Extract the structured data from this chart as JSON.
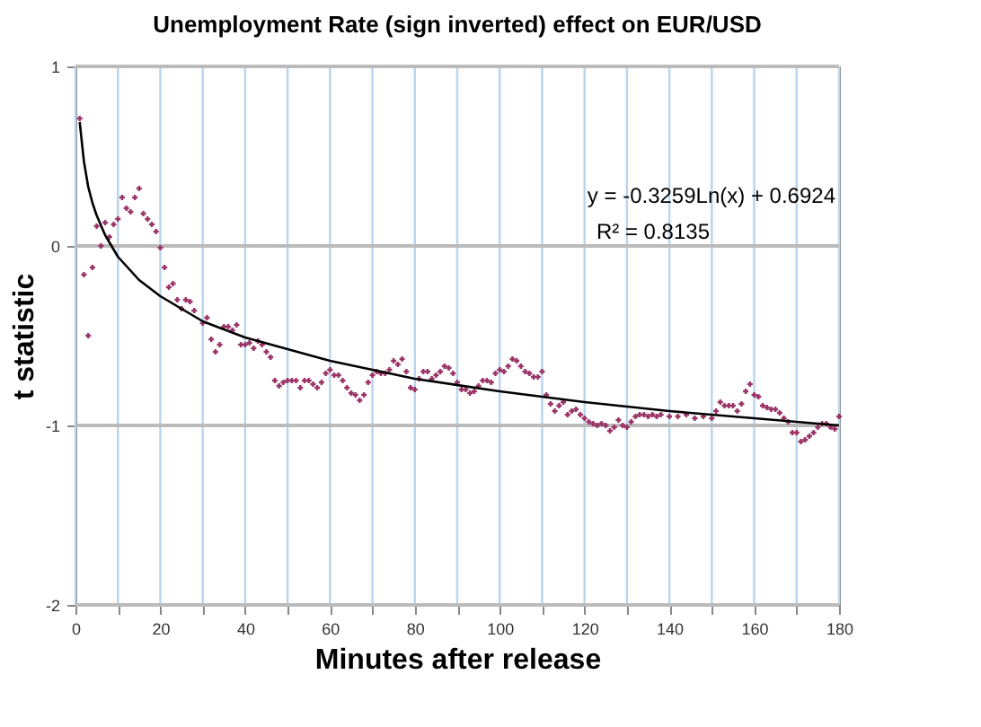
{
  "chart_data": {
    "type": "scatter",
    "title": "Unemployment Rate (sign inverted) effect on EUR/USD",
    "xlabel": "Minutes after release",
    "ylabel": "t statistic",
    "xlim": [
      0,
      180
    ],
    "ylim": [
      -2,
      1
    ],
    "xticks": [
      0,
      {
        "value": 10,
        "label": null
      },
      20,
      {
        "value": 30,
        "label": null
      },
      40,
      {
        "value": 50,
        "label": null
      },
      60,
      {
        "value": 70,
        "label": null
      },
      80,
      {
        "value": 90,
        "label": null
      },
      100,
      {
        "value": 110,
        "label": null
      },
      120,
      {
        "value": 130,
        "label": null
      },
      140,
      {
        "value": 150,
        "label": null
      },
      160,
      {
        "value": 170,
        "label": null
      },
      180
    ],
    "yticks": [
      -2,
      -1,
      0,
      1
    ],
    "grid": true,
    "legend": false,
    "annotations": [
      {
        "text": "y = -0.3259Ln(x) + 0.6924"
      },
      {
        "text": "R² = 0.8135"
      }
    ],
    "series": [
      {
        "type": "scatter",
        "marker": "cross",
        "color": "#993366",
        "x": [
          1,
          2,
          3,
          4,
          5,
          6,
          7,
          8,
          9,
          10,
          11,
          12,
          13,
          14,
          15,
          16,
          17,
          18,
          19,
          20,
          21,
          22,
          23,
          24,
          25,
          26,
          27,
          28,
          30,
          31,
          32,
          33,
          34,
          35,
          36,
          37,
          38,
          39,
          40,
          41,
          42,
          43,
          44,
          45,
          46,
          47,
          48,
          49,
          50,
          51,
          52,
          53,
          54,
          55,
          56,
          57,
          58,
          59,
          60,
          61,
          62,
          63,
          64,
          65,
          66,
          67,
          68,
          69,
          70,
          71,
          72,
          73,
          74,
          75,
          76,
          77,
          78,
          79,
          80,
          81,
          82,
          83,
          84,
          85,
          86,
          87,
          88,
          89,
          90,
          91,
          92,
          93,
          94,
          95,
          96,
          97,
          98,
          99,
          100,
          101,
          102,
          103,
          104,
          105,
          106,
          107,
          108,
          109,
          110,
          111,
          112,
          113,
          114,
          115,
          116,
          117,
          118,
          119,
          120,
          121,
          122,
          123,
          124,
          125,
          126,
          127,
          128,
          129,
          130,
          131,
          132,
          133,
          134,
          135,
          136,
          137,
          138,
          140,
          142,
          144,
          146,
          148,
          150,
          151,
          152,
          153,
          154,
          155,
          156,
          157,
          158,
          159,
          160,
          161,
          162,
          163,
          164,
          165,
          166,
          167,
          168,
          169,
          170,
          171,
          172,
          173,
          174,
          175,
          176,
          177,
          178,
          179,
          180
        ],
        "values": [
          0.71,
          -0.16,
          -0.5,
          -0.12,
          0.11,
          0.0,
          0.13,
          0.05,
          0.12,
          0.15,
          0.27,
          0.21,
          0.19,
          0.27,
          0.32,
          0.18,
          0.15,
          0.12,
          0.08,
          -0.01,
          -0.12,
          -0.23,
          -0.21,
          -0.3,
          -0.35,
          -0.3,
          -0.31,
          -0.36,
          -0.43,
          -0.4,
          -0.52,
          -0.59,
          -0.55,
          -0.45,
          -0.45,
          -0.47,
          -0.44,
          -0.55,
          -0.55,
          -0.54,
          -0.57,
          -0.53,
          -0.55,
          -0.59,
          -0.62,
          -0.75,
          -0.78,
          -0.76,
          -0.75,
          -0.75,
          -0.75,
          -0.79,
          -0.75,
          -0.75,
          -0.77,
          -0.79,
          -0.76,
          -0.71,
          -0.69,
          -0.72,
          -0.72,
          -0.75,
          -0.79,
          -0.82,
          -0.83,
          -0.86,
          -0.83,
          -0.76,
          -0.72,
          -0.7,
          -0.71,
          -0.71,
          -0.69,
          -0.64,
          -0.66,
          -0.63,
          -0.7,
          -0.79,
          -0.8,
          -0.74,
          -0.7,
          -0.7,
          -0.74,
          -0.72,
          -0.7,
          -0.67,
          -0.68,
          -0.71,
          -0.76,
          -0.8,
          -0.8,
          -0.82,
          -0.81,
          -0.78,
          -0.75,
          -0.75,
          -0.76,
          -0.71,
          -0.69,
          -0.7,
          -0.67,
          -0.63,
          -0.64,
          -0.67,
          -0.7,
          -0.71,
          -0.73,
          -0.73,
          -0.7,
          -0.83,
          -0.88,
          -0.92,
          -0.89,
          -0.87,
          -0.94,
          -0.92,
          -0.91,
          -0.94,
          -0.96,
          -0.98,
          -0.99,
          -1.0,
          -0.99,
          -1.0,
          -1.03,
          -1.01,
          -0.97,
          -1.0,
          -1.01,
          -0.98,
          -0.95,
          -0.94,
          -0.94,
          -0.95,
          -0.94,
          -0.95,
          -0.94,
          -0.95,
          -0.95,
          -0.94,
          -0.96,
          -0.95,
          -0.96,
          -0.92,
          -0.87,
          -0.89,
          -0.89,
          -0.89,
          -0.92,
          -0.88,
          -0.81,
          -0.77,
          -0.83,
          -0.84,
          -0.89,
          -0.9,
          -0.91,
          -0.91,
          -0.93,
          -0.96,
          -0.98,
          -1.04,
          -1.04,
          -1.09,
          -1.08,
          -1.06,
          -1.04,
          -1.01,
          -0.99,
          -0.99,
          -1.01,
          -1.02,
          -0.95
        ]
      },
      {
        "type": "line",
        "marker": "none",
        "line_style": "solid",
        "color": "#000000",
        "x": [
          1,
          2,
          3,
          4,
          5,
          7,
          10,
          15,
          20,
          30,
          40,
          60,
          80,
          100,
          120,
          140,
          160,
          180
        ],
        "values": [
          0.69,
          0.47,
          0.33,
          0.24,
          0.17,
          0.06,
          -0.06,
          -0.19,
          -0.28,
          -0.42,
          -0.51,
          -0.64,
          -0.74,
          -0.81,
          -0.87,
          -0.92,
          -0.96,
          -1.0
        ]
      }
    ]
  }
}
